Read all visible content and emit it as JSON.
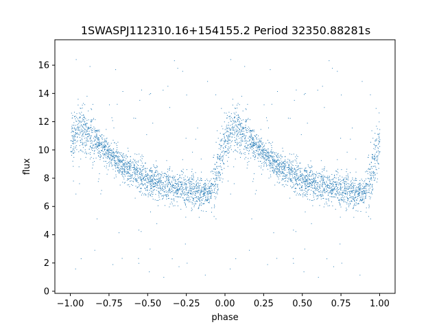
{
  "chart_data": {
    "type": "scatter",
    "title": "1SWASPJ112310.16+154155.2 Period 32350.88281s",
    "xlabel": "phase",
    "ylabel": "flux",
    "xlim": [
      -1.1,
      1.1
    ],
    "ylim": [
      -0.15,
      17.8
    ],
    "x_ticks": [
      -1.0,
      -0.75,
      -0.5,
      -0.25,
      0.0,
      0.25,
      0.5,
      0.75,
      1.0
    ],
    "x_tick_labels": [
      "−1.00",
      "−0.75",
      "−0.50",
      "−0.25",
      "0.00",
      "0.25",
      "0.50",
      "0.75",
      "1.00"
    ],
    "y_ticks": [
      0,
      2,
      4,
      6,
      8,
      10,
      12,
      14,
      16
    ],
    "y_tick_labels": [
      "0",
      "2",
      "4",
      "6",
      "8",
      "10",
      "12",
      "14",
      "16"
    ],
    "grid": false,
    "legend": "none",
    "marker_color": "#1f77b4",
    "curve_profile": {
      "phase": [
        0.0,
        0.05,
        0.1,
        0.2,
        0.3,
        0.4,
        0.5,
        0.6,
        0.7,
        0.8,
        0.85,
        0.9,
        0.95,
        1.0
      ],
      "flux": [
        10.8,
        11.4,
        11.2,
        10.3,
        9.3,
        8.5,
        7.9,
        7.6,
        7.3,
        7.0,
        6.9,
        7.0,
        8.5,
        10.8
      ]
    }
  }
}
